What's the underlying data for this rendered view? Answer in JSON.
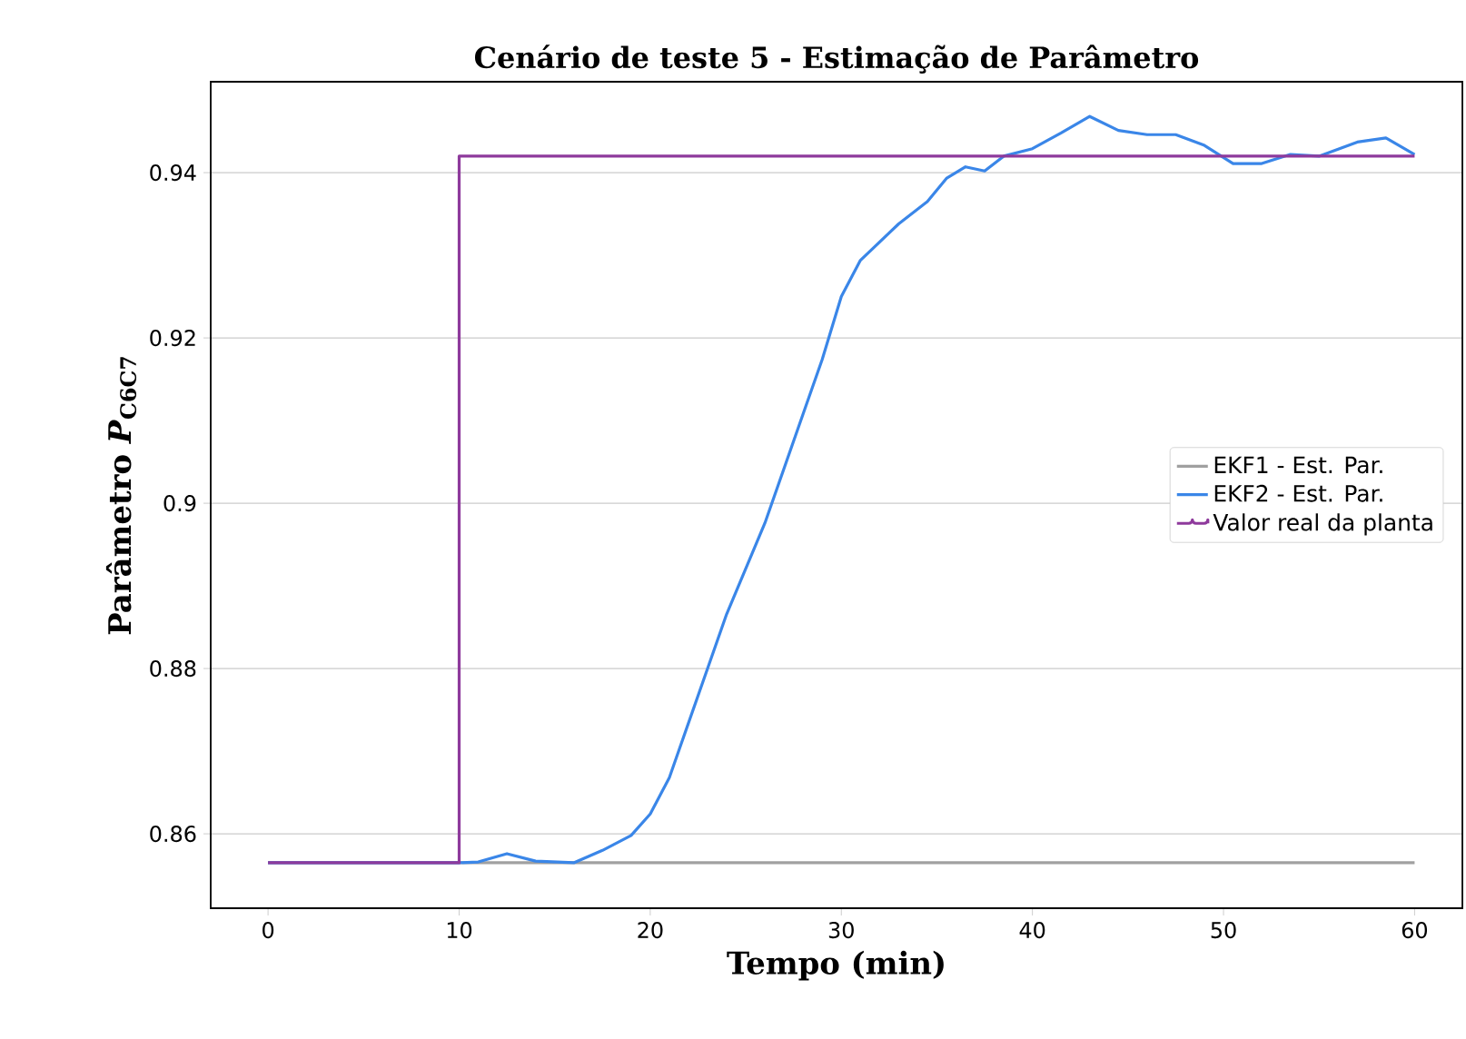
{
  "chart_data": {
    "type": "line",
    "title": "Cenário de teste 5 - Estimação de Parâmetro",
    "xlabel": "Tempo (min)",
    "ylabel": "Parâmetro *P*$_{C6C7}$",
    "xlim": [
      -3,
      62.5
    ],
    "ylim": [
      0.851,
      0.951
    ],
    "xticks": [
      0,
      10,
      20,
      30,
      40,
      50,
      60
    ],
    "yticks": [
      0.86,
      0.88,
      0.9,
      0.92,
      0.94
    ],
    "grid": "y",
    "legend": "right",
    "line_style": "solid",
    "marker": "none",
    "series": [
      {
        "name": "EKF1 - Est. Par.",
        "color": "#a0a0a0",
        "x": [
          0,
          60
        ],
        "values": [
          0.8565,
          0.8565
        ]
      },
      {
        "name": "EKF2 - Est. Par.",
        "color": "#3a86e8",
        "x": [
          0,
          10,
          11,
          12.5,
          14,
          16,
          17.5,
          19,
          20,
          21,
          22,
          24,
          26,
          28,
          29,
          30,
          31,
          33,
          34.5,
          35.5,
          36.5,
          37.5,
          38.5,
          40,
          41.5,
          43,
          44.5,
          46,
          47.5,
          49,
          50.5,
          52,
          53.5,
          55,
          57,
          58.5,
          60
        ],
        "values": [
          0.8565,
          0.8565,
          0.8566,
          0.8576,
          0.8567,
          0.8565,
          0.858,
          0.8598,
          0.8624,
          0.8668,
          0.8734,
          0.8866,
          0.8976,
          0.9108,
          0.9174,
          0.925,
          0.9294,
          0.9338,
          0.9365,
          0.9393,
          0.9407,
          0.9402,
          0.942,
          0.9429,
          0.9448,
          0.9468,
          0.9451,
          0.9446,
          0.9446,
          0.9433,
          0.9411,
          0.9411,
          0.9422,
          0.942,
          0.9437,
          0.9442,
          0.9422
        ]
      },
      {
        "name": "Valor real da planta",
        "color": "#8e3a9c",
        "type": "step",
        "x": [
          0,
          10,
          60
        ],
        "values": [
          0.8565,
          0.942,
          0.942
        ]
      }
    ]
  }
}
